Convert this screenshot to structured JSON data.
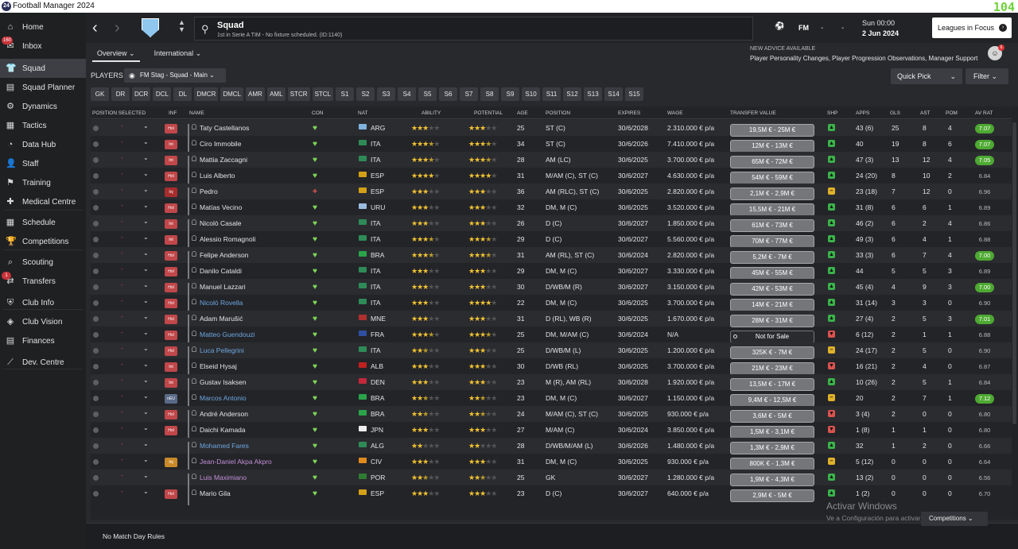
{
  "window": {
    "title": "Football Manager 2024",
    "fps": "104"
  },
  "sidebar": {
    "items": [
      {
        "label": "Home",
        "badge": ""
      },
      {
        "label": "Inbox",
        "badge": "160"
      },
      {
        "label": "Squad",
        "badge": ""
      },
      {
        "label": "Squad Planner",
        "badge": ""
      },
      {
        "label": "Dynamics",
        "badge": ""
      },
      {
        "label": "Tactics",
        "badge": ""
      },
      {
        "label": "Data Hub",
        "badge": ""
      },
      {
        "label": "Staff",
        "badge": ""
      },
      {
        "label": "Training",
        "badge": ""
      },
      {
        "label": "Medical Centre",
        "badge": ""
      },
      {
        "label": "Schedule",
        "badge": ""
      },
      {
        "label": "Competitions",
        "badge": ""
      },
      {
        "label": "Scouting",
        "badge": ""
      },
      {
        "label": "Transfers",
        "badge": "1"
      },
      {
        "label": "Club Info",
        "badge": ""
      },
      {
        "label": "Club Vision",
        "badge": ""
      },
      {
        "label": "Finances",
        "badge": ""
      },
      {
        "label": "Dev. Centre",
        "badge": ""
      }
    ]
  },
  "header": {
    "title": "Squad",
    "subtitle": "1st in Serie A TIM - No fixture scheduled. (ID:1140)",
    "fm": "FM",
    "dash1": "-",
    "dash2": "-",
    "date_line1": "Sun 00:00",
    "date_line2": "2 Jun 2024",
    "leagues_btn": "Leagues in Focus"
  },
  "subtabs": [
    "Overview",
    "International"
  ],
  "advice": {
    "heading": "NEW ADVICE AVAILABLE",
    "text": "Player Personality Changes, Player Progression Observations, Manager Support",
    "count": "6"
  },
  "players_label": "PLAYERS",
  "view_select": "FM Stag - Squad - Main",
  "quick_pick": "Quick Pick",
  "filter": "Filter",
  "position_chips": [
    "GK",
    "DR",
    "DCR",
    "DCL",
    "DL",
    "DMCR",
    "DMCL",
    "AMR",
    "AML",
    "STCR",
    "STCL",
    "S1",
    "S2",
    "S3",
    "S4",
    "S5",
    "S6",
    "S7",
    "S8",
    "S9",
    "S10",
    "S11",
    "S12",
    "S13",
    "S14",
    "S15"
  ],
  "columns": {
    "pos": "POSITION SELECTED",
    "inf": "INF",
    "name": "NAME",
    "con": "CON",
    "nat": "NAT",
    "abi": "ABILITY",
    "pot": "POTENTIAL",
    "age": "AGE",
    "position": "POSITION",
    "expires": "EXPIRES",
    "wage": "WAGE",
    "tv": "TRANSFER VALUE",
    "shp": "SHP",
    "apps": "APPS",
    "gls": "GLS",
    "ast": "AST",
    "pom": "POM",
    "avr": "AV RAT"
  },
  "players": [
    {
      "inf": "Hol",
      "name": "Taty Castellanos",
      "nat": "ARG",
      "abi": 3,
      "pot": 3,
      "age": "25",
      "pos": "ST (C)",
      "exp": "30/6/2028",
      "wage": "2.310.000 € p/a",
      "tv": "19,5M € - 25M €",
      "shp": "up",
      "apps": "43 (6)",
      "gls": "25",
      "ast": "8",
      "pom": "4",
      "avr": "7.07",
      "con": "ok"
    },
    {
      "inf": "Int",
      "name": "Ciro Immobile",
      "nat": "ITA",
      "abi": 3.5,
      "pot": 3.5,
      "age": "34",
      "pos": "ST (C)",
      "exp": "30/6/2026",
      "wage": "7.410.000 € p/a",
      "tv": "12M € - 13M €",
      "shp": "up",
      "apps": "40",
      "gls": "19",
      "ast": "8",
      "pom": "6",
      "avr": "7.07",
      "con": "ok"
    },
    {
      "inf": "Int",
      "name": "Mattia Zaccagni",
      "nat": "ITA",
      "abi": 3.5,
      "pot": 3.5,
      "age": "28",
      "pos": "AM (LC)",
      "exp": "30/6/2025",
      "wage": "3.700.000 € p/a",
      "tv": "65M € - 72M €",
      "shp": "up",
      "apps": "47 (3)",
      "gls": "13",
      "ast": "12",
      "pom": "4",
      "avr": "7.05",
      "con": "ok"
    },
    {
      "inf": "Hol",
      "name": "Luis Alberto",
      "nat": "ESP",
      "abi": 4,
      "pot": 4,
      "age": "31",
      "pos": "M/AM (C), ST (C)",
      "exp": "30/6/2027",
      "wage": "4.630.000 € p/a",
      "tv": "54M € - 59M €",
      "shp": "up",
      "apps": "24 (20)",
      "gls": "8",
      "ast": "10",
      "pom": "2",
      "avr": "6.84",
      "con": "ok"
    },
    {
      "inf": "Inj",
      "name": "Pedro",
      "nat": "ESP",
      "abi": 3,
      "pot": 3,
      "age": "36",
      "pos": "AM (RLC), ST (C)",
      "exp": "30/6/2025",
      "wage": "2.820.000 € p/a",
      "tv": "2,1M € - 2,9M €",
      "shp": "mid",
      "apps": "23 (18)",
      "gls": "7",
      "ast": "12",
      "pom": "0",
      "avr": "6.96",
      "con": "inj"
    },
    {
      "inf": "Hol",
      "name": "Matías Vecino",
      "nat": "URU",
      "abi": 3,
      "pot": 3,
      "age": "32",
      "pos": "DM, M (C)",
      "exp": "30/6/2025",
      "wage": "3.520.000 € p/a",
      "tv": "15,5M € - 21M €",
      "shp": "up",
      "apps": "31 (8)",
      "gls": "6",
      "ast": "6",
      "pom": "1",
      "avr": "6.89",
      "con": "ok"
    },
    {
      "inf": "Int",
      "name": "Nicolò Casale",
      "nat": "ITA",
      "abi": 3,
      "pot": 3,
      "age": "26",
      "pos": "D (C)",
      "exp": "30/6/2027",
      "wage": "1.850.000 € p/a",
      "tv": "61M € - 73M €",
      "shp": "up",
      "apps": "46 (2)",
      "gls": "6",
      "ast": "2",
      "pom": "4",
      "avr": "6.86",
      "con": "ok"
    },
    {
      "inf": "Int",
      "name": "Alessio Romagnoli",
      "nat": "ITA",
      "abi": 3.5,
      "pot": 3.5,
      "age": "29",
      "pos": "D (C)",
      "exp": "30/6/2027",
      "wage": "5.560.000 € p/a",
      "tv": "70M € - 77M €",
      "shp": "up",
      "apps": "49 (3)",
      "gls": "6",
      "ast": "4",
      "pom": "1",
      "avr": "6.88",
      "con": "ok"
    },
    {
      "inf": "Hol",
      "name": "Felipe Anderson",
      "nat": "BRA",
      "abi": 3.5,
      "pot": 3.5,
      "age": "31",
      "pos": "AM (RL), ST (C)",
      "exp": "30/6/2024",
      "wage": "2.820.000 € p/a",
      "tv": "5,2M € - 7M €",
      "shp": "up",
      "apps": "33 (3)",
      "gls": "6",
      "ast": "7",
      "pom": "4",
      "avr": "7.00",
      "con": "ok"
    },
    {
      "inf": "Hol",
      "name": "Danilo Cataldi",
      "nat": "ITA",
      "abi": 3,
      "pot": 3,
      "age": "29",
      "pos": "DM, M (C)",
      "exp": "30/6/2027",
      "wage": "3.330.000 € p/a",
      "tv": "45M € - 55M €",
      "shp": "up",
      "apps": "44",
      "gls": "5",
      "ast": "5",
      "pom": "3",
      "avr": "6.89",
      "con": "ok"
    },
    {
      "inf": "Hol",
      "name": "Manuel Lazzari",
      "nat": "ITA",
      "abi": 3,
      "pot": 3,
      "age": "30",
      "pos": "D/WB/M (R)",
      "exp": "30/6/2027",
      "wage": "3.150.000 € p/a",
      "tv": "42M € - 53M €",
      "shp": "up",
      "apps": "45 (4)",
      "gls": "4",
      "ast": "9",
      "pom": "3",
      "avr": "7.00",
      "con": "ok"
    },
    {
      "inf": "Hol",
      "name": "Nicolò Rovella",
      "nat": "ITA",
      "abi": 3,
      "pot": 4,
      "age": "22",
      "pos": "DM, M (C)",
      "exp": "30/6/2025",
      "wage": "3.700.000 € p/a",
      "tv": "14M € - 21M €",
      "shp": "up",
      "apps": "31 (14)",
      "gls": "3",
      "ast": "3",
      "pom": "0",
      "avr": "6.90",
      "con": "ok",
      "link": true
    },
    {
      "inf": "Hol",
      "name": "Adam Marušić",
      "nat": "MNE",
      "abi": 3,
      "pot": 3,
      "age": "31",
      "pos": "D (RL), WB (R)",
      "exp": "30/6/2025",
      "wage": "1.670.000 € p/a",
      "tv": "28M € - 31M €",
      "shp": "up",
      "apps": "27 (4)",
      "gls": "2",
      "ast": "5",
      "pom": "3",
      "avr": "7.01",
      "con": "ok"
    },
    {
      "inf": "Hol",
      "name": "Matteo Guendouzi",
      "nat": "FRA",
      "abi": 3.5,
      "pot": 3.5,
      "age": "25",
      "pos": "DM, M/AM (C)",
      "exp": "30/6/2024",
      "wage": "N/A",
      "tv": "Not for Sale",
      "shp": "down",
      "apps": "6 (12)",
      "gls": "2",
      "ast": "1",
      "pom": "1",
      "avr": "6.88",
      "con": "ok",
      "link": true,
      "nfs": true
    },
    {
      "inf": "Hol",
      "name": "Luca Pellegrini",
      "nat": "ITA",
      "abi": 2.5,
      "pot": 3,
      "age": "25",
      "pos": "D/WB/M (L)",
      "exp": "30/6/2025",
      "wage": "1.200.000 € p/a",
      "tv": "325K € - 7M €",
      "shp": "mid",
      "apps": "24 (17)",
      "gls": "2",
      "ast": "5",
      "pom": "0",
      "avr": "6.90",
      "con": "ok",
      "link": true
    },
    {
      "inf": "Int",
      "name": "Elseid Hysaj",
      "nat": "ALB",
      "abi": 3,
      "pot": 3,
      "age": "30",
      "pos": "D/WB (RL)",
      "exp": "30/6/2025",
      "wage": "3.700.000 € p/a",
      "tv": "21M € - 23M €",
      "shp": "down",
      "apps": "16 (21)",
      "gls": "2",
      "ast": "4",
      "pom": "0",
      "avr": "6.87",
      "con": "ok"
    },
    {
      "inf": "Int",
      "name": "Gustav Isaksen",
      "nat": "DEN",
      "abi": 3,
      "pot": 3,
      "age": "23",
      "pos": "M (R), AM (RL)",
      "exp": "30/6/2028",
      "wage": "1.920.000 € p/a",
      "tv": "13,5M € - 17M €",
      "shp": "up",
      "apps": "10 (26)",
      "gls": "2",
      "ast": "5",
      "pom": "1",
      "avr": "6.84",
      "con": "ok"
    },
    {
      "inf": "nEU",
      "name": "Marcos Antonio",
      "nat": "BRA",
      "abi": 2.5,
      "pot": 2.5,
      "age": "23",
      "pos": "DM, M (C)",
      "exp": "30/6/2027",
      "wage": "1.150.000 € p/a",
      "tv": "9,4M € - 12,5M €",
      "shp": "mid",
      "apps": "20",
      "gls": "2",
      "ast": "7",
      "pom": "1",
      "avr": "7.12",
      "con": "ok",
      "link": true
    },
    {
      "inf": "Hol",
      "name": "André Anderson",
      "nat": "BRA",
      "abi": 2.5,
      "pot": 2.5,
      "age": "24",
      "pos": "M/AM (C), ST (C)",
      "exp": "30/6/2025",
      "wage": "930.000 € p/a",
      "tv": "3,6M € - 5M €",
      "shp": "down",
      "apps": "3 (4)",
      "gls": "2",
      "ast": "0",
      "pom": "0",
      "avr": "6.80",
      "con": "ok"
    },
    {
      "inf": "Hol",
      "name": "Daichi Kamada",
      "nat": "JPN",
      "abi": 3,
      "pot": 3,
      "age": "27",
      "pos": "M/AM (C)",
      "exp": "30/6/2024",
      "wage": "3.850.000 € p/a",
      "tv": "1,5M € - 3,1M €",
      "shp": "down",
      "apps": "1 (8)",
      "gls": "1",
      "ast": "1",
      "pom": "0",
      "avr": "6.80",
      "con": "ok"
    },
    {
      "inf": "",
      "name": "Mohamed Fares",
      "nat": "ALG",
      "abi": 2,
      "pot": 2,
      "age": "28",
      "pos": "D/WB/M/AM (L)",
      "exp": "30/6/2026",
      "wage": "1.480.000 € p/a",
      "tv": "1,3M € - 2,9M €",
      "shp": "up",
      "apps": "32",
      "gls": "1",
      "ast": "2",
      "pom": "0",
      "avr": "6.66",
      "con": "ok",
      "link": true
    },
    {
      "inf": "Inj",
      "name": "Jean-Daniel Akpa Akpro",
      "nat": "CIV",
      "abi": 3,
      "pot": 3,
      "age": "31",
      "pos": "DM, M (C)",
      "exp": "30/6/2025",
      "wage": "930.000 € p/a",
      "tv": "800K € - 1,3M €",
      "shp": "mid",
      "apps": "5 (12)",
      "gls": "0",
      "ast": "0",
      "pom": "0",
      "avr": "6.64",
      "con": "ok",
      "link": true,
      "lightinj": true
    },
    {
      "inf": "",
      "name": "Luis Maximiano",
      "nat": "POR",
      "abi": 2.5,
      "pot": 2.5,
      "age": "25",
      "pos": "GK",
      "exp": "30/6/2027",
      "wage": "1.280.000 € p/a",
      "tv": "1,9M € - 4,3M €",
      "shp": "up",
      "apps": "13 (2)",
      "gls": "0",
      "ast": "0",
      "pom": "0",
      "avr": "6.56",
      "con": "ok",
      "link": true
    },
    {
      "inf": "Hol",
      "name": "Mario Gila",
      "nat": "ESP",
      "abi": 3,
      "pot": 3,
      "age": "23",
      "pos": "D (C)",
      "exp": "30/6/2027",
      "wage": "640.000 € p/a",
      "tv": "2,9M € - 5M €",
      "shp": "up",
      "apps": "1 (2)",
      "gls": "0",
      "ast": "0",
      "pom": "0",
      "avr": "6.70",
      "con": "ok"
    }
  ],
  "footer": {
    "no_match": "No Match Day Rules",
    "competitions": "Competitions"
  },
  "watermark": {
    "line1": "Activar Windows",
    "line2": "Ve a Configuración para activar Windows."
  },
  "colors": {
    "accent": "#4ea932",
    "inf_hol": "#c0474a",
    "inf_int": "#c0474a",
    "inf_inj": "#a72c2c",
    "link": "#6ea7e0",
    "fav": "#c28fd7"
  }
}
